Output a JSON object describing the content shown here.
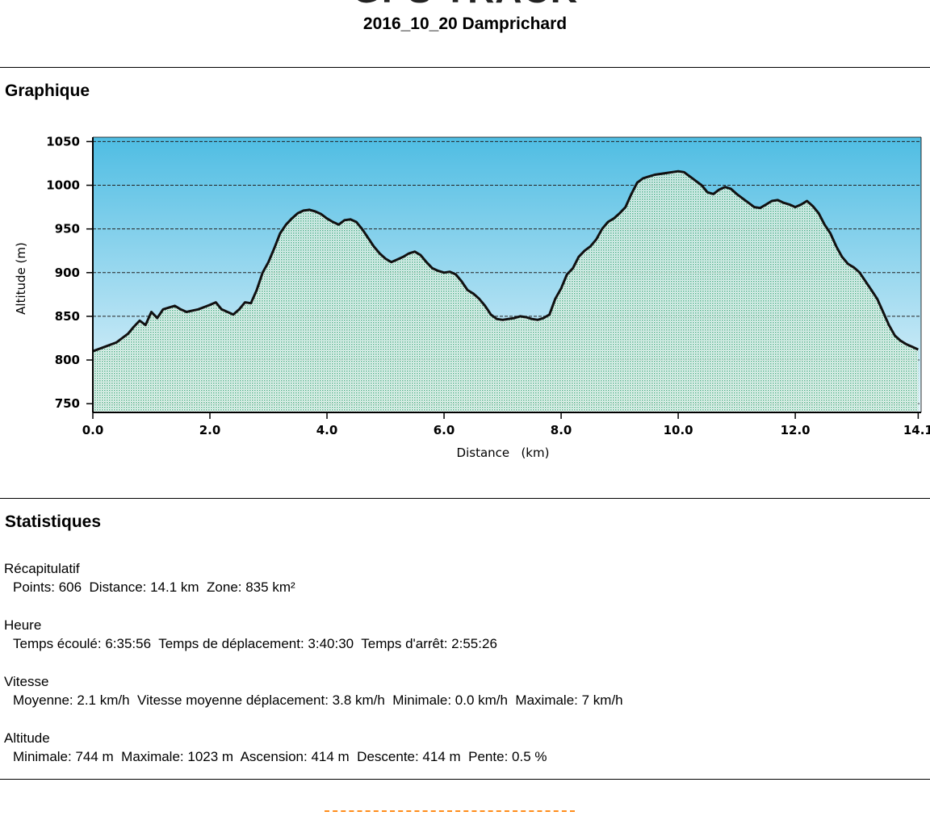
{
  "header": {
    "app_title": "GPS TRACK",
    "doc_title": "2016_10_20 Damprichard"
  },
  "sections": {
    "chart_heading": "Graphique",
    "stats_heading": "Statistiques"
  },
  "stats": {
    "recap": {
      "title": "Récapitulatif",
      "items": [
        "Points: 606",
        "Distance: 14.1 km",
        "Zone: 835 km²"
      ]
    },
    "time": {
      "title": "Heure",
      "items": [
        "Temps écoulé: 6:35:56",
        "Temps de déplacement: 3:40:30",
        "Temps d'arrêt: 2:55:26"
      ]
    },
    "speed": {
      "title": "Vitesse",
      "items": [
        "Moyenne: 2.1 km/h",
        "Vitesse moyenne déplacement: 3.8 km/h",
        "Minimale: 0.0 km/h",
        "Maximale: 7 km/h"
      ]
    },
    "altitude": {
      "title": "Altitude",
      "items": [
        "Minimale: 744 m",
        "Maximale: 1023 m",
        "Ascension: 414 m",
        "Descente: 414 m",
        "Pente: 0.5 %"
      ]
    }
  },
  "colors": {
    "sky_top": "#4fbde3",
    "sky_bottom": "#e6f4fb",
    "terrain_fill": "#4cae82",
    "profile_line": "#111111",
    "footer_dash": "#ff8c1a"
  },
  "chart_data": {
    "type": "area",
    "xlabel": "Distance   (km)",
    "ylabel": "Altitude (m)",
    "xlim": [
      0,
      14.15
    ],
    "ylim": [
      740,
      1055
    ],
    "x_ticks": [
      0,
      2,
      4,
      6,
      8,
      10,
      12,
      14.1
    ],
    "x_tick_labels": [
      "0.0",
      "2.0",
      "4.0",
      "6.0",
      "8.0",
      "10.0",
      "12.0",
      "14.1"
    ],
    "y_ticks": [
      750,
      800,
      850,
      900,
      950,
      1000,
      1050
    ],
    "y_tick_labels": [
      "750",
      "800",
      "850",
      "900",
      "950",
      "1000",
      "1050"
    ],
    "grid": "horizontal dashed",
    "series": [
      {
        "x": [
          0,
          0.2,
          0.4,
          0.6,
          0.7,
          0.8,
          0.9,
          1.0,
          1.1,
          1.2,
          1.3,
          1.4,
          1.5,
          1.6,
          1.8,
          2.0,
          2.1,
          2.2,
          2.4,
          2.5,
          2.6,
          2.7,
          2.8,
          2.9,
          3.0,
          3.1,
          3.2,
          3.3,
          3.4,
          3.5,
          3.6,
          3.7,
          3.8,
          3.9,
          4.0,
          4.1,
          4.2,
          4.3,
          4.4,
          4.5,
          4.6,
          4.7,
          4.8,
          4.9,
          5.0,
          5.1,
          5.2,
          5.3,
          5.4,
          5.5,
          5.6,
          5.7,
          5.8,
          5.9,
          6.0,
          6.1,
          6.2,
          6.3,
          6.4,
          6.5,
          6.6,
          6.7,
          6.8,
          6.9,
          7.0,
          7.1,
          7.2,
          7.3,
          7.4,
          7.5,
          7.6,
          7.7,
          7.8,
          7.9,
          8.0,
          8.1,
          8.2,
          8.3,
          8.4,
          8.5,
          8.6,
          8.7,
          8.8,
          8.9,
          9.0,
          9.1,
          9.2,
          9.3,
          9.4,
          9.5,
          9.6,
          9.8,
          10.0,
          10.1,
          10.2,
          10.3,
          10.4,
          10.5,
          10.6,
          10.7,
          10.8,
          10.9,
          11.0,
          11.1,
          11.2,
          11.3,
          11.4,
          11.5,
          11.6,
          11.7,
          11.8,
          11.9,
          12.0,
          12.1,
          12.2,
          12.3,
          12.4,
          12.5,
          12.6,
          12.7,
          12.8,
          12.9,
          13.0,
          13.1,
          13.2,
          13.3,
          13.4,
          13.5,
          13.6,
          13.7,
          13.8,
          13.9,
          14.0,
          14.1
        ],
        "y": [
          810,
          815,
          820,
          830,
          838,
          845,
          840,
          855,
          848,
          858,
          860,
          862,
          858,
          855,
          858,
          863,
          866,
          858,
          852,
          858,
          866,
          865,
          880,
          900,
          912,
          928,
          945,
          955,
          962,
          968,
          971,
          972,
          970,
          967,
          962,
          958,
          955,
          960,
          961,
          958,
          950,
          940,
          930,
          922,
          916,
          912,
          915,
          918,
          922,
          924,
          920,
          912,
          905,
          902,
          900,
          901,
          898,
          890,
          880,
          876,
          870,
          862,
          852,
          847,
          846,
          847,
          848,
          850,
          849,
          847,
          846,
          848,
          852,
          870,
          882,
          898,
          905,
          918,
          925,
          930,
          938,
          950,
          958,
          962,
          968,
          975,
          990,
          1003,
          1008,
          1010,
          1012,
          1014,
          1016,
          1015,
          1010,
          1005,
          1000,
          992,
          990,
          995,
          998,
          996,
          990,
          985,
          980,
          975,
          974,
          978,
          982,
          983,
          980,
          978,
          975,
          978,
          982,
          976,
          968,
          955,
          945,
          930,
          918,
          910,
          906,
          900,
          890,
          880,
          870,
          855,
          840,
          828,
          822,
          818,
          815,
          812
        ]
      }
    ]
  }
}
